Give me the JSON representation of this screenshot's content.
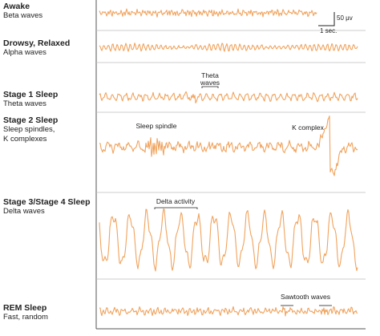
{
  "stages": [
    {
      "title": "Awake",
      "description": "Beta waves"
    },
    {
      "title": "Drowsy, Relaxed",
      "description": "Alpha waves"
    },
    {
      "title": "Stage 1 Sleep",
      "description": "Theta waves"
    },
    {
      "title": "Stage 2 Sleep",
      "description": "Sleep spindles,\nK complexes"
    },
    {
      "title": "Stage 3/Stage 4 Sleep",
      "description": "Delta waves"
    },
    {
      "title": "REM Sleep",
      "description": "Fast, random"
    }
  ],
  "annotations": {
    "theta_line1": "Theta",
    "theta_line2": "waves",
    "sleep_spindle": "Sleep spindle",
    "k_complex": "K complex",
    "delta_activity": "Delta activity",
    "sawtooth_waves": "Sawtooth waves"
  },
  "scale_bar": {
    "amplitude": "50 µv",
    "time": "1 sec."
  },
  "colors": {
    "trace": "#f0a35e",
    "border": "#555555",
    "divider": "#bbbbbb",
    "text": "#222222"
  }
}
